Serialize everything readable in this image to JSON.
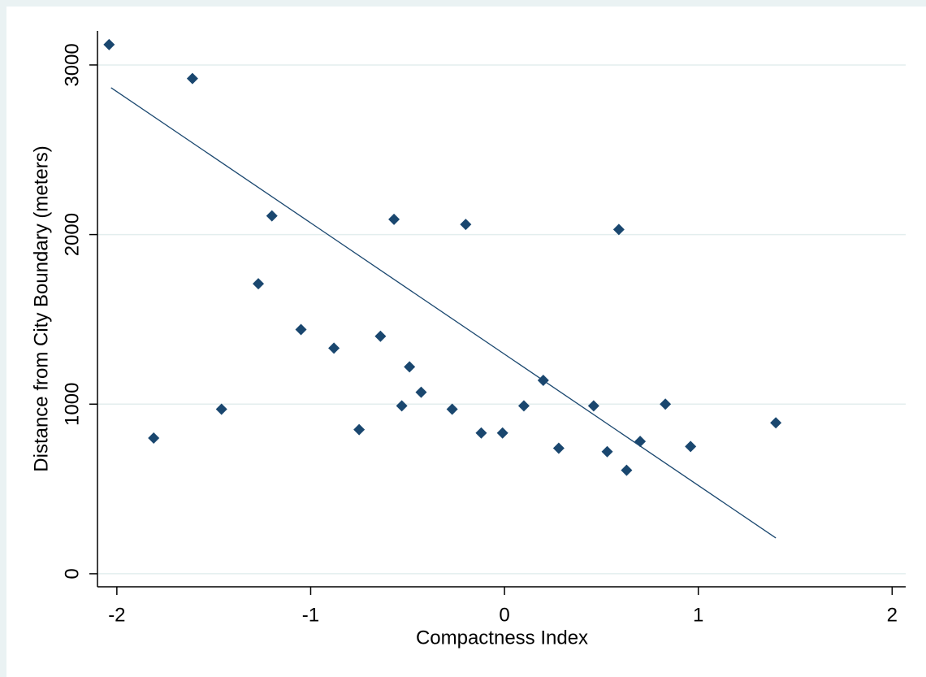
{
  "chart_data": {
    "type": "scatter",
    "x_label": "Compactness Index",
    "y_label": "Distance from City Boundary (meters)",
    "xlim": [
      -2.1,
      2.07
    ],
    "ylim": [
      -77,
      3201
    ],
    "xticks": [
      -2,
      -1,
      0,
      1,
      2
    ],
    "yticks": [
      0,
      1000,
      2000,
      3000
    ],
    "grid": true,
    "points": {
      "color": "#1a476f",
      "x": [
        -2.04,
        -1.61,
        -1.81,
        -1.46,
        -1.2,
        -1.27,
        -1.05,
        -0.88,
        -0.75,
        -0.64,
        -0.57,
        -0.53,
        -0.49,
        -0.43,
        -0.27,
        -0.2,
        -0.12,
        -0.01,
        0.1,
        0.2,
        0.28,
        0.46,
        0.53,
        0.59,
        0.63,
        0.7,
        0.83,
        0.96,
        1.4
      ],
      "y": [
        3120,
        2920,
        800,
        970,
        2110,
        1710,
        1440,
        1330,
        850,
        1400,
        2090,
        990,
        1220,
        1070,
        970,
        2060,
        830,
        830,
        990,
        1140,
        740,
        990,
        720,
        2030,
        610,
        780,
        1000,
        750,
        890
      ]
    },
    "fit_line": {
      "color": "#1a476f",
      "x": [
        -2.03,
        1.4
      ],
      "y": [
        2866,
        211
      ]
    }
  }
}
